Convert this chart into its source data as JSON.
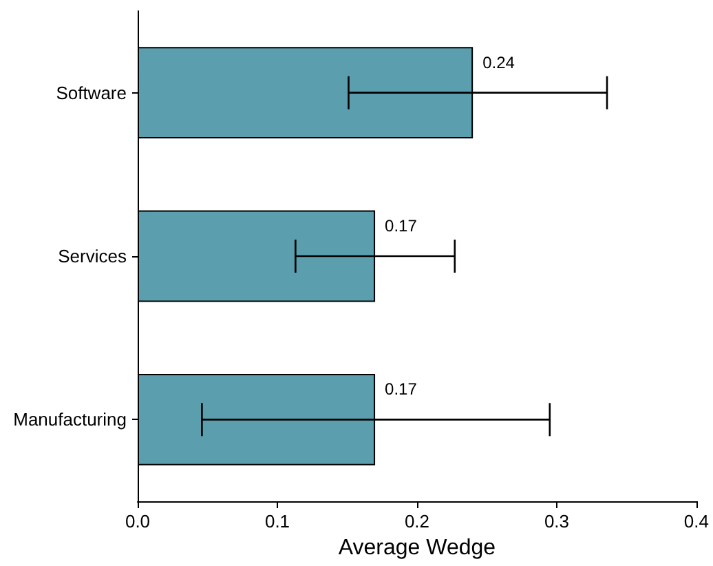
{
  "chart_data": {
    "type": "bar",
    "orientation": "horizontal",
    "xlabel": "Average Wedge",
    "categories": [
      "Software",
      "Services",
      "Manufacturing"
    ],
    "values": [
      0.24,
      0.17,
      0.17
    ],
    "color": "#5b9fae",
    "errors": [
      [
        0.151,
        0.336
      ],
      [
        0.113,
        0.227
      ],
      [
        0.046,
        0.295
      ]
    ],
    "data_labels": true,
    "xlim": [
      0,
      0.4
    ],
    "xticks": [
      {
        "value": 0,
        "label": "0.0"
      },
      0.1,
      0.2,
      0.3,
      0.4
    ],
    "grid": false
  }
}
